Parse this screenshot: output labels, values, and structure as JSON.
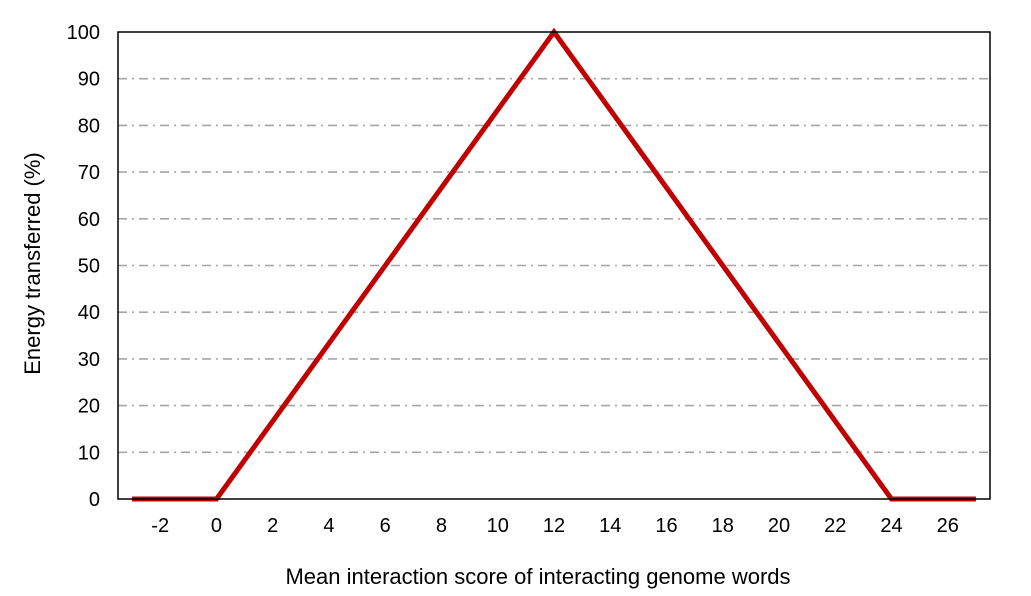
{
  "chart_data": {
    "type": "line",
    "title": "",
    "xlabel": "Mean interaction score of interacting genome words",
    "ylabel": "Energy transferred (%)",
    "xlim": [
      -3.5,
      27.5
    ],
    "ylim": [
      0,
      100
    ],
    "x_ticks": [
      -2,
      0,
      2,
      4,
      6,
      8,
      10,
      12,
      14,
      16,
      18,
      20,
      22,
      24,
      26
    ],
    "y_ticks": [
      0,
      10,
      20,
      30,
      40,
      50,
      60,
      70,
      80,
      90,
      100
    ],
    "grid": {
      "x": false,
      "y": true,
      "style": "dash-dot",
      "color": "#A6A6A6"
    },
    "legend": "none",
    "series": [
      {
        "color": "#C00000",
        "x": [
          -3,
          0,
          12,
          24,
          27
        ],
        "y": [
          0,
          0,
          100,
          0,
          0
        ]
      }
    ]
  }
}
